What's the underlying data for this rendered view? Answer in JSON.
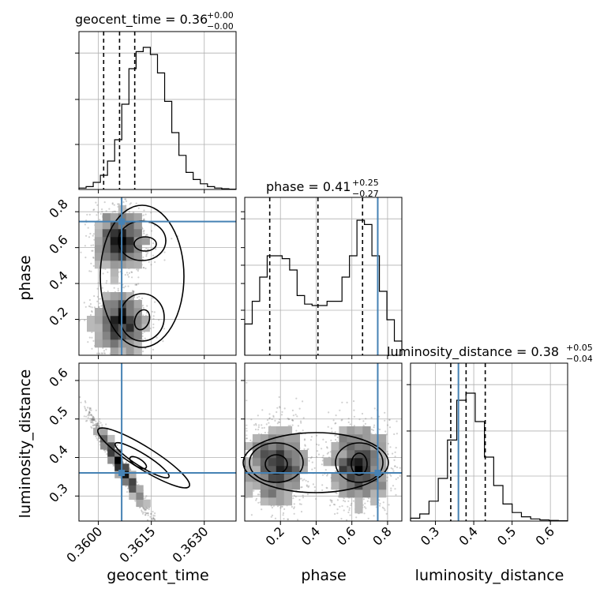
{
  "chart_data": {
    "type": "corner",
    "parameters": [
      "geocent_time",
      "phase",
      "luminosity_distance"
    ],
    "truths": {
      "geocent_time": 0.36066,
      "phase": 0.745,
      "luminosity_distance": 0.36
    },
    "titles": {
      "geocent_time": {
        "label": "geocent_time = 0.36",
        "sup": "+0.00",
        "sub": "−0.00"
      },
      "phase": {
        "label": "phase = 0.41",
        "sup": "+0.25",
        "sub": "−0.27"
      },
      "luminosity_distance": {
        "label": "luminosity_distance = 0.38",
        "sup": "+0.05",
        "sub": "−0.04"
      }
    },
    "axis_labels": {
      "x": [
        "geocent_time",
        "phase",
        "luminosity_distance"
      ],
      "y": [
        "phase",
        "luminosity_distance"
      ]
    },
    "ticks": {
      "geocent_time": [
        "0.3600",
        "0.3615",
        "0.3630"
      ],
      "phase": [
        "0.2",
        "0.4",
        "0.6",
        "0.8"
      ],
      "luminosity_distance": [
        "0.3",
        "0.4",
        "0.5",
        "0.6"
      ],
      "luminosity_distance_y": [
        "0.3",
        "0.4",
        "0.5",
        "0.6"
      ]
    },
    "ranges": {
      "geocent_time": [
        0.35945,
        0.3639
      ],
      "phase": [
        0.0,
        0.88
      ],
      "luminosity_distance": [
        0.235,
        0.645
      ]
    },
    "quantiles": {
      "geocent_time": [
        0.36015,
        0.3606,
        0.36103
      ],
      "phase": [
        0.14,
        0.41,
        0.66
      ],
      "luminosity_distance": [
        0.34,
        0.38,
        0.43
      ]
    },
    "histograms": {
      "geocent_time": [
        0.01,
        0.02,
        0.05,
        0.1,
        0.2,
        0.35,
        0.6,
        0.85,
        0.97,
        1.0,
        0.95,
        0.82,
        0.62,
        0.4,
        0.24,
        0.12,
        0.07,
        0.04,
        0.02,
        0.01,
        0.005,
        0.002
      ],
      "phase": [
        0.22,
        0.38,
        0.55,
        0.7,
        0.7,
        0.68,
        0.6,
        0.42,
        0.36,
        0.35,
        0.35,
        0.38,
        0.38,
        0.55,
        0.7,
        0.95,
        0.92,
        0.7,
        0.45,
        0.25,
        0.1
      ],
      "luminosity_distance": [
        0.02,
        0.05,
        0.14,
        0.3,
        0.57,
        0.85,
        0.9,
        0.7,
        0.45,
        0.25,
        0.12,
        0.06,
        0.03,
        0.015,
        0.008,
        0.004,
        0.002
      ]
    },
    "grid": true
  }
}
